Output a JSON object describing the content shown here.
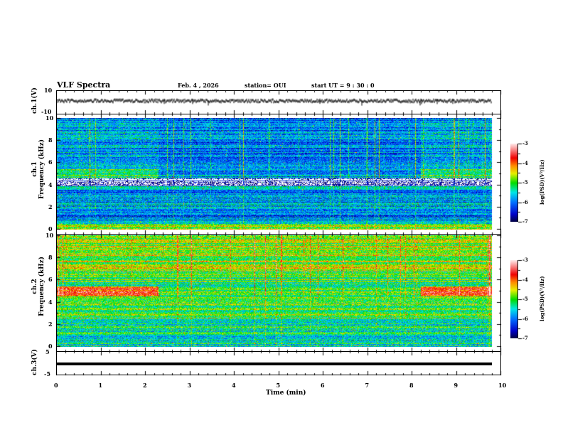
{
  "header": {
    "title": "VLF Spectra",
    "date": "Feb. 4  , 2026",
    "station": "station= OUI",
    "start": "start  UT =   9  : 30 : 0"
  },
  "chart_data": [
    {
      "type": "line",
      "name": "ch1",
      "ylabel": "ch.1(V)",
      "ylim": [
        -10,
        10
      ],
      "yticks": [
        "10",
        "-10"
      ],
      "mean_value": 0,
      "x_range_min": [
        0,
        9.8
      ]
    },
    {
      "type": "heatmap",
      "name": "ch1-spectrogram",
      "ylabel": "ch.1\nFrequency  (kHz)",
      "ylabel_lines": [
        "ch.1",
        "Frequency  (kHz)"
      ],
      "ylim": [
        0,
        10
      ],
      "yticks": [
        "0",
        "2",
        "4",
        "6",
        "8",
        "10"
      ],
      "colorbar": {
        "label": "log(PSD)(V²/Hz)",
        "range": [
          -7,
          -3
        ],
        "ticks": [
          "-3",
          "-4",
          "-5",
          "-6",
          "-7"
        ]
      },
      "features": "strong dark band near 4-4.6 kHz; band near 5 kHz before 2.3 min and after 8.2 min"
    },
    {
      "type": "heatmap",
      "name": "ch2-spectrogram",
      "ylabel_lines": [
        "ch.2",
        "Frequency  (kHz)"
      ],
      "ylim": [
        0,
        10
      ],
      "yticks": [
        "0",
        "2",
        "4",
        "6",
        "8",
        "10"
      ],
      "colorbar": {
        "label": "log(PSD)(V²/Hz)",
        "range": [
          -7,
          -3
        ],
        "ticks": [
          "-3",
          "-4",
          "-5",
          "-6",
          "-7"
        ]
      },
      "features": "red band near 5 kHz before 2.3 min and after 8.2 min"
    },
    {
      "type": "line",
      "name": "ch3",
      "ylabel": "ch.3(V)",
      "ylim": [
        -5,
        5
      ],
      "yticks": [
        "5",
        "-5"
      ],
      "constant_value": -0.2
    }
  ],
  "xaxis": {
    "label": "Time  (min)",
    "range": [
      0,
      10
    ],
    "ticks": [
      "0",
      "1",
      "2",
      "3",
      "4",
      "5",
      "6",
      "7",
      "8",
      "9",
      "10"
    ]
  }
}
